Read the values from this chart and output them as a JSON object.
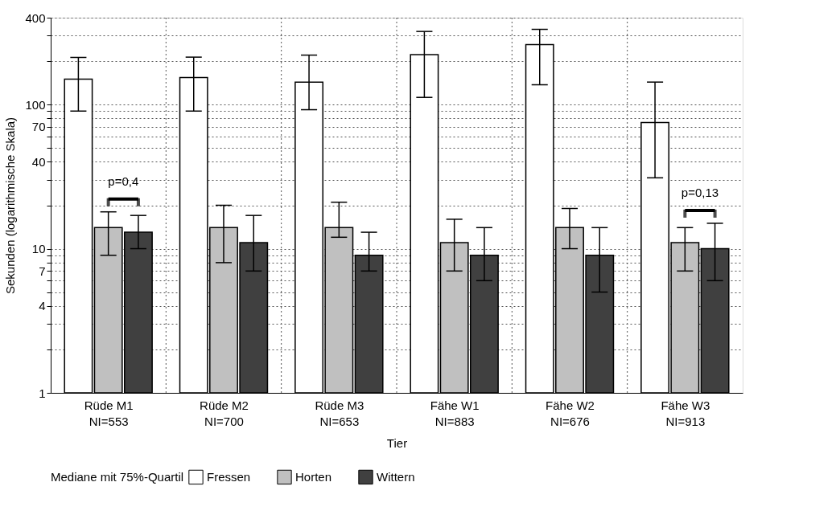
{
  "chart_data": {
    "type": "bar",
    "categories": [
      "Rüde M1\nNI=553",
      "Rüde M2\nNI=700",
      "Rüde M3\nNI=653",
      "Fähe W1\nNI=883",
      "Fähe W2\nNI=676",
      "Fähe W3\nNI=913"
    ],
    "xlabel": "Tier",
    "ylabel": "Sekunden (logarithmische Skala)",
    "legend_title": "Mediane mit 75%-Quartil",
    "series": [
      {
        "name": "Fressen",
        "color": "#ffffff",
        "values": [
          150,
          154,
          143,
          222,
          260,
          75
        ],
        "errors": [
          [
            90,
            212
          ],
          [
            90,
            213
          ],
          [
            92,
            220
          ],
          [
            112,
            321
          ],
          [
            137,
            332
          ],
          [
            31,
            143
          ]
        ]
      },
      {
        "name": "Horten",
        "color": "#c0c0c0",
        "values": [
          14,
          14,
          14,
          11,
          14,
          11
        ],
        "errors": [
          [
            9,
            18
          ],
          [
            8,
            20
          ],
          [
            12,
            21
          ],
          [
            7,
            16
          ],
          [
            10,
            19
          ],
          [
            7,
            14
          ]
        ]
      },
      {
        "name": "Wittern",
        "color": "#404040",
        "values": [
          13,
          11,
          9,
          9,
          9,
          10
        ],
        "errors": [
          [
            10,
            17
          ],
          [
            7,
            17
          ],
          [
            7,
            13
          ],
          [
            6,
            14
          ],
          [
            5,
            14
          ],
          [
            6,
            15
          ]
        ]
      }
    ],
    "log": "y",
    "ylim": [
      1,
      400
    ],
    "yticks": [
      1,
      {
        "value": 2,
        "label": null
      },
      {
        "value": 3,
        "label": null
      },
      4,
      {
        "value": 5,
        "label": null
      },
      {
        "value": 6,
        "label": null
      },
      7,
      {
        "value": 8,
        "label": null
      },
      {
        "value": 9,
        "label": null
      },
      10,
      {
        "value": 20,
        "label": null
      },
      {
        "value": 30,
        "label": null
      },
      40,
      {
        "value": 50,
        "label": null
      },
      {
        "value": 60,
        "label": null
      },
      70,
      {
        "value": 80,
        "label": null
      },
      {
        "value": 90,
        "label": null
      },
      100,
      {
        "value": 200,
        "label": null
      },
      {
        "value": 300,
        "label": null
      },
      400
    ],
    "grid": true,
    "legend": "bottom",
    "annotations": [
      "p=0,4",
      "p=0,13"
    ]
  }
}
